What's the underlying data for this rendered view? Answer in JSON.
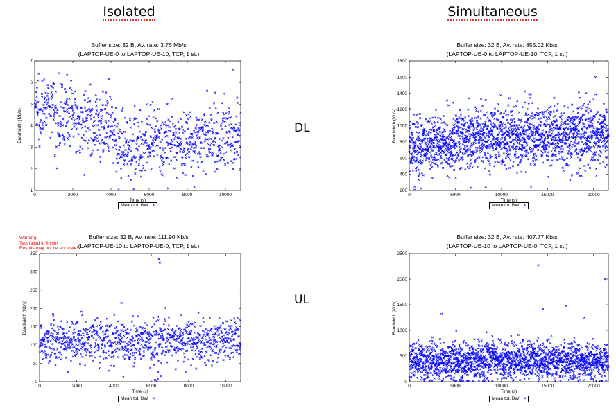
{
  "column_headers": {
    "left": "Isolated",
    "right": "Simultaneous"
  },
  "row_headers": {
    "top": "DL",
    "bottom": "UL"
  },
  "warning": {
    "lines": [
      "Warning:",
      "Test failed to finish!",
      "Results may not be accurate!"
    ]
  },
  "colors": {
    "marker": "#0000ff",
    "warning": "#ee0000"
  },
  "chart_data": [
    {
      "id": "dl_isolated",
      "type": "scatter",
      "title": "Buffer size: 32 B, Av. rate: 3.76 Mb/s",
      "subtitle": "(LAPTOP-UE-0 to LAPTOP-UE-10, TCP, 1 st.)",
      "xlabel": "Time (s)",
      "ylabel": "Bandwidth (Mb/s)",
      "xlim": [
        0,
        10800
      ],
      "ylim": [
        1,
        7
      ],
      "xticks": [
        0,
        2000,
        4000,
        6000,
        8000,
        10000
      ],
      "yticks": [
        1,
        2,
        3,
        4,
        5,
        6,
        7
      ],
      "legend": "Mean tot. BW",
      "series_name": "Mean tot. BW",
      "n_points": 900,
      "trend": [
        [
          0,
          5.0
        ],
        [
          2000,
          4.4
        ],
        [
          4000,
          3.9
        ],
        [
          4300,
          3.1
        ],
        [
          7000,
          3.2
        ],
        [
          10800,
          3.6
        ]
      ],
      "spread": 0.75,
      "outliers": [
        [
          10400,
          6.6
        ],
        [
          7000,
          1.1
        ],
        [
          1700,
          6.35
        ]
      ]
    },
    {
      "id": "dl_simultaneous",
      "type": "scatter",
      "title": "Buffer size: 32 B, Av. rate: 855.02 Kb/s",
      "subtitle": "(LAPTOP-UE-0 to LAPTOP-UE-10, TCP, 1 st.)",
      "xlabel": "Time (s)",
      "ylabel": "Bandwidth (Kb/s)",
      "xlim": [
        0,
        21600
      ],
      "ylim": [
        200,
        1800
      ],
      "xticks": [
        0,
        5000,
        10000,
        15000,
        20000
      ],
      "yticks": [
        200,
        400,
        600,
        800,
        1000,
        1200,
        1400,
        1600,
        1800
      ],
      "legend": "Mean tot. BW",
      "series_name": "Mean tot. BW",
      "n_points": 1800,
      "trend": [
        [
          0,
          720
        ],
        [
          5000,
          820
        ],
        [
          10000,
          860
        ],
        [
          15000,
          880
        ],
        [
          21600,
          900
        ]
      ],
      "spread": 190,
      "outliers": [
        [
          20200,
          1600
        ],
        [
          18500,
          380
        ]
      ]
    },
    {
      "id": "ul_isolated",
      "type": "scatter",
      "title": "Buffer size: 32 B, Av. rate: 111.90 Kb/s",
      "subtitle": "(LAPTOP-UE-10 to LAPTOP-UE-0, TCP, 1 st.)",
      "xlabel": "Time (s)",
      "ylabel": "Bandwidth (Kb/s)",
      "xlim": [
        0,
        10800
      ],
      "ylim": [
        0,
        350
      ],
      "xticks": [
        0,
        2000,
        4000,
        6000,
        8000,
        10000
      ],
      "yticks": [
        0,
        50,
        100,
        150,
        200,
        250,
        300,
        350
      ],
      "legend": "Mean tot. BW",
      "series_name": "Mean tot. BW",
      "n_points": 900,
      "trend": [
        [
          0,
          112
        ],
        [
          5000,
          112
        ],
        [
          10800,
          112
        ]
      ],
      "spread": 30,
      "outliers": [
        [
          6400,
          335
        ],
        [
          6450,
          325
        ],
        [
          6200,
          5
        ],
        [
          6300,
          2
        ],
        [
          6350,
          8
        ],
        [
          6500,
          15
        ],
        [
          4400,
          215
        ],
        [
          6000,
          60
        ]
      ]
    },
    {
      "id": "ul_simultaneous",
      "type": "scatter",
      "title": "Buffer size: 32 B, Av. rate: 407.77 Kb/s",
      "subtitle": "(LAPTOP-UE-10 to LAPTOP-UE-0, TCP, 1 st.)",
      "xlabel": "Time (s)",
      "ylabel": "Bandwidth (Kb/s)",
      "xlim": [
        0,
        21600
      ],
      "ylim": [
        0,
        2500
      ],
      "xticks": [
        0,
        5000,
        10000,
        15000,
        20000
      ],
      "yticks": [
        0,
        500,
        1000,
        1500,
        2000,
        2500
      ],
      "legend": "Mean tot. BW",
      "series_name": "Mean tot. BW",
      "n_points": 1800,
      "trend": [
        [
          0,
          380
        ],
        [
          10000,
          410
        ],
        [
          21600,
          400
        ]
      ],
      "spread": 180,
      "outliers": [
        [
          14000,
          2270
        ],
        [
          21200,
          2000
        ],
        [
          17000,
          1480
        ],
        [
          14500,
          1420
        ],
        [
          3500,
          1320
        ],
        [
          19000,
          1250
        ]
      ]
    }
  ]
}
